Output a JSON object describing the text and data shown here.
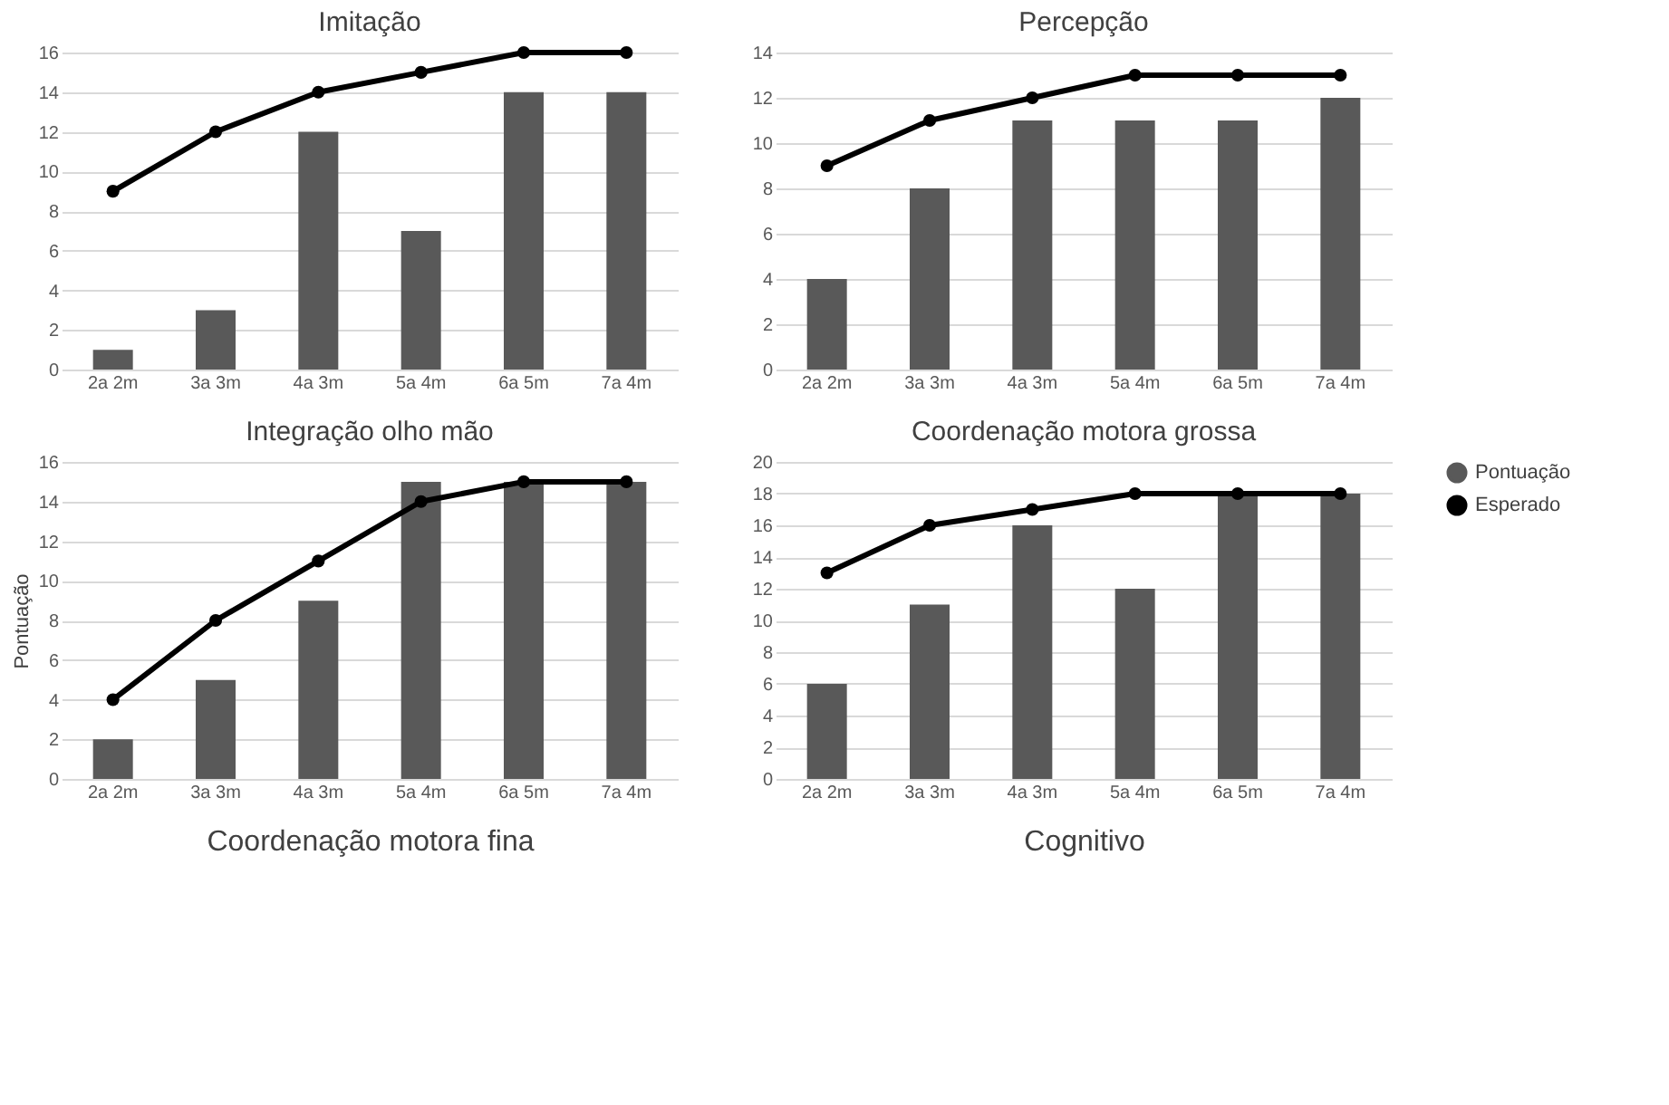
{
  "chart_data": [
    {
      "type": "bar",
      "title": "Imitação",
      "categories": [
        "2a 2m",
        "3a 3m",
        "4a 3m",
        "5a 4m",
        "6a 5m",
        "7a 4m"
      ],
      "series": [
        {
          "type": "bar",
          "color": "#595959",
          "values": [
            1,
            3,
            12,
            7,
            14,
            14
          ]
        },
        {
          "type": "line",
          "color": "#000000",
          "values": [
            9,
            12,
            14,
            15,
            16,
            16
          ]
        }
      ],
      "ylim": [
        0,
        16
      ],
      "yticks": [
        0,
        2,
        4,
        6,
        8,
        10,
        12,
        14,
        16
      ],
      "grid": "y",
      "marker": "circle"
    },
    {
      "type": "bar",
      "title": "Percepção",
      "categories": [
        "2a 2m",
        "3a 3m",
        "4a 3m",
        "5a 4m",
        "6a 5m",
        "7a 4m"
      ],
      "series": [
        {
          "type": "bar",
          "color": "#595959",
          "values": [
            4,
            8,
            11,
            11,
            11,
            12
          ]
        },
        {
          "type": "line",
          "color": "#000000",
          "values": [
            9,
            11,
            12,
            13,
            13,
            13
          ]
        }
      ],
      "ylim": [
        0,
        14
      ],
      "yticks": [
        0,
        2,
        4,
        6,
        8,
        10,
        12,
        14
      ],
      "grid": "y",
      "marker": "circle"
    },
    {
      "type": "bar",
      "title": "Integração olho mão",
      "ylabel": "Pontuação",
      "annotations": [
        "Coordenação motora fina"
      ],
      "categories": [
        "2a 2m",
        "3a 3m",
        "4a 3m",
        "5a 4m",
        "6a 5m",
        "7a 4m"
      ],
      "series": [
        {
          "type": "bar",
          "color": "#595959",
          "values": [
            2,
            5,
            9,
            15,
            15,
            15
          ]
        },
        {
          "type": "line",
          "color": "#000000",
          "values": [
            4,
            8,
            11,
            14,
            15,
            15
          ]
        }
      ],
      "ylim": [
        0,
        16
      ],
      "yticks": [
        0,
        2,
        4,
        6,
        8,
        10,
        12,
        14,
        16
      ],
      "grid": "y",
      "marker": "circle"
    },
    {
      "type": "bar",
      "title": "Coordenação motora grossa",
      "annotations": [
        "Cognitivo"
      ],
      "categories": [
        "2a 2m",
        "3a 3m",
        "4a 3m",
        "5a 4m",
        "6a 5m",
        "7a 4m"
      ],
      "series": [
        {
          "name": "Pontuação",
          "type": "bar",
          "color": "#595959",
          "values": [
            6,
            11,
            16,
            12,
            18,
            18
          ]
        },
        {
          "name": "Esperado",
          "type": "line",
          "color": "#000000",
          "values": [
            13,
            16,
            17,
            18,
            18,
            18
          ]
        }
      ],
      "ylim": [
        0,
        20
      ],
      "yticks": [
        0,
        2,
        4,
        6,
        8,
        10,
        12,
        14,
        16,
        18,
        20
      ],
      "grid": "y",
      "marker": "circle",
      "legend": "right"
    }
  ]
}
